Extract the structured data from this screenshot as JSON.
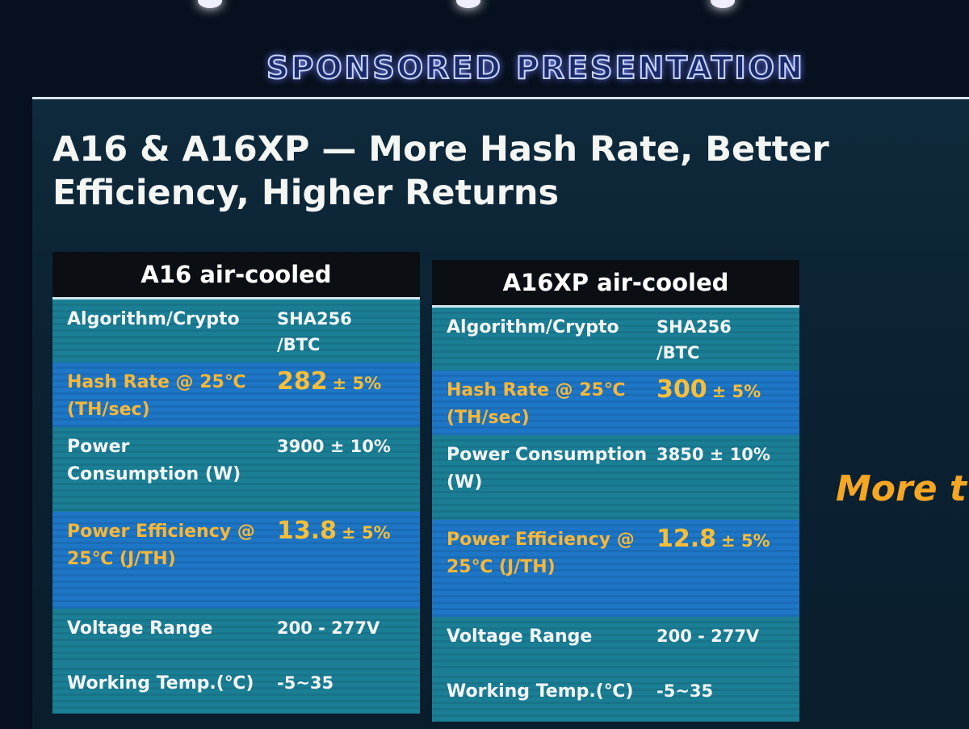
{
  "banner": "SPONSORED PRESENTATION",
  "title": "A16 & A16XP — More Hash Rate, Better Efficiency, Higher Returns",
  "tables": [
    {
      "title": "A16 air-cooled",
      "rows": [
        {
          "label": "Algorithm/Crypto",
          "value": "SHA256\n/BTC"
        },
        {
          "label": "Hash Rate @ 25℃\n(TH/sec)",
          "value": "282",
          "tolerance": "± 5%"
        },
        {
          "label": "Power\nConsumption (W)",
          "value": "3900 ± 10%"
        },
        {
          "label": "Power Efficiency @\n25℃ (J/TH)",
          "value": "13.8",
          "tolerance": "± 5%"
        },
        {
          "label": "Voltage  Range",
          "value": "200 - 277V"
        },
        {
          "label": "Working Temp.(℃)",
          "value": "-5~35"
        }
      ]
    },
    {
      "title": "A16XP air-cooled",
      "rows": [
        {
          "label": "Algorithm/Crypto",
          "value": "SHA256\n/BTC"
        },
        {
          "label": "Hash Rate @ 25℃\n(TH/sec)",
          "value": "300",
          "tolerance": "± 5%"
        },
        {
          "label": "Power Consumption\n(W)",
          "value": "3850 ± 10%"
        },
        {
          "label": "Power Efficiency @\n25℃ (J/TH)",
          "value": "12.8",
          "tolerance": "± 5%"
        },
        {
          "label": "Voltage  Range",
          "value": "200 - 277V"
        },
        {
          "label": "Working Temp.(℃)",
          "value": "-5~35"
        }
      ]
    }
  ],
  "side_text": "More t"
}
